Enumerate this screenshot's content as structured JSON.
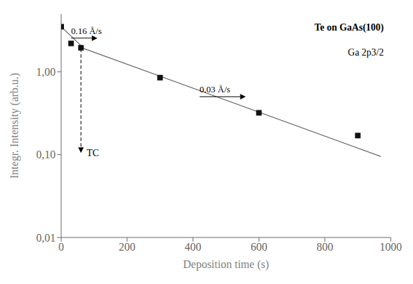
{
  "chart_data": {
    "type": "scatter",
    "title": "Te on GaAs(100)",
    "subtitle": "Ga 2p3/2",
    "x_label": "Deposition time (s)",
    "y_label": "Integr. Intensity (arb.u.)",
    "log": "y",
    "grid": false,
    "xlim": [
      0,
      1000
    ],
    "ylim": [
      0.01,
      5.0
    ],
    "xticks": [
      0,
      200,
      400,
      600,
      800,
      1000
    ],
    "yticks": [
      {
        "value": 0.01,
        "label": "0,01"
      },
      {
        "value": 0.1,
        "label": "0,10"
      },
      {
        "value": 1.0,
        "label": "1,00"
      }
    ],
    "series": [
      {
        "type": "line",
        "color": "#666666",
        "x": [
          0,
          70
        ],
        "values": [
          3.5,
          1.9
        ]
      },
      {
        "type": "line",
        "color": "#666666",
        "x": [
          70,
          970
        ],
        "values": [
          1.9,
          0.095
        ]
      },
      {
        "type": "scatter",
        "marker": "square",
        "color": "#111111",
        "x": [
          0,
          30,
          60,
          300,
          600,
          900
        ],
        "values": [
          3.5,
          2.2,
          1.95,
          0.85,
          0.32,
          0.17
        ]
      }
    ],
    "annotations": [
      {
        "text": "0.16 Å/s",
        "x": 30,
        "y": 2.55,
        "arrow_x": 110
      },
      {
        "text": "0.03 Å/s",
        "x": 420,
        "y": 0.5,
        "arrow_x": 560
      },
      {
        "text": "TC",
        "x": 60,
        "y": [
          0.105,
          1.9
        ],
        "line_style": "dashed"
      }
    ]
  }
}
